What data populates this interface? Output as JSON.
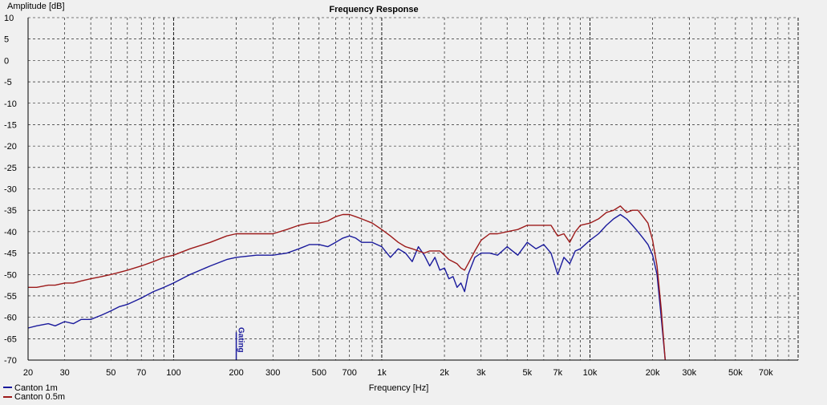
{
  "chart_data": {
    "type": "line",
    "title": "Frequency Response",
    "xlabel": "Frequency [Hz]",
    "ylabel": "Amplitude [dB]",
    "xscale": "log",
    "xlim": [
      20,
      100000
    ],
    "ylim": [
      -70,
      10
    ],
    "grid": true,
    "legend_position": "bottom-left",
    "x_ticks": [
      {
        "value": 20,
        "label": "20"
      },
      {
        "value": 30,
        "label": "30"
      },
      {
        "value": 50,
        "label": "50"
      },
      {
        "value": 70,
        "label": "70"
      },
      {
        "value": 100,
        "label": "100"
      },
      {
        "value": 200,
        "label": "200"
      },
      {
        "value": 300,
        "label": "300"
      },
      {
        "value": 500,
        "label": "500"
      },
      {
        "value": 700,
        "label": "700"
      },
      {
        "value": 1000,
        "label": "1k"
      },
      {
        "value": 2000,
        "label": "2k"
      },
      {
        "value": 3000,
        "label": "3k"
      },
      {
        "value": 5000,
        "label": "5k"
      },
      {
        "value": 7000,
        "label": "7k"
      },
      {
        "value": 10000,
        "label": "10k"
      },
      {
        "value": 20000,
        "label": "20k"
      },
      {
        "value": 30000,
        "label": "30k"
      },
      {
        "value": 50000,
        "label": "50k"
      },
      {
        "value": 70000,
        "label": "70k"
      }
    ],
    "y_ticks": [
      10,
      5,
      0,
      -5,
      -10,
      -15,
      -20,
      -25,
      -30,
      -35,
      -40,
      -45,
      -50,
      -55,
      -60,
      -65,
      -70
    ],
    "marker": {
      "label": "Gating",
      "x": 200,
      "color": "#1a1a9c"
    },
    "series": [
      {
        "name": "Canton 1m",
        "color": "#1a1a9c",
        "x": [
          20,
          22,
          25,
          27,
          30,
          33,
          36,
          40,
          45,
          50,
          55,
          60,
          70,
          80,
          90,
          100,
          120,
          150,
          180,
          200,
          250,
          300,
          350,
          400,
          450,
          500,
          550,
          600,
          650,
          700,
          750,
          800,
          900,
          1000,
          1100,
          1200,
          1300,
          1400,
          1500,
          1600,
          1700,
          1800,
          1900,
          2000,
          2100,
          2200,
          2300,
          2400,
          2500,
          2600,
          2800,
          3000,
          3300,
          3600,
          4000,
          4500,
          5000,
          5500,
          6000,
          6500,
          7000,
          7500,
          8000,
          8500,
          9000,
          10000,
          11000,
          12000,
          13000,
          14000,
          15000,
          16000,
          17000,
          18000,
          19000,
          20000,
          21000,
          22000,
          23000
        ],
        "y": [
          -62.5,
          -62,
          -61.5,
          -62,
          -61,
          -61.5,
          -60.5,
          -60.5,
          -59.5,
          -58.5,
          -57.5,
          -57,
          -55.5,
          -54,
          -53,
          -52,
          -50,
          -48,
          -46.5,
          -46,
          -45.5,
          -45.5,
          -45,
          -44,
          -43,
          -43,
          -43.5,
          -42.5,
          -41.5,
          -41,
          -41.5,
          -42.5,
          -42.5,
          -43.5,
          -46,
          -44,
          -45,
          -47,
          -43.5,
          -45.5,
          -48,
          -46,
          -49,
          -48.5,
          -51,
          -50.5,
          -53,
          -52,
          -54,
          -50,
          -46,
          -45,
          -45,
          -45.5,
          -43.5,
          -45.5,
          -42.5,
          -44,
          -43,
          -45,
          -50,
          -46,
          -47.5,
          -44.5,
          -44,
          -42,
          -40.5,
          -38.5,
          -37,
          -36,
          -37,
          -38.5,
          -40,
          -41.5,
          -43,
          -45.5,
          -50,
          -60,
          -70
        ]
      },
      {
        "name": "Canton 0.5m",
        "color": "#9c1a1a",
        "x": [
          20,
          22,
          25,
          27,
          30,
          33,
          36,
          40,
          45,
          50,
          55,
          60,
          70,
          80,
          90,
          100,
          120,
          150,
          180,
          200,
          250,
          300,
          350,
          400,
          450,
          500,
          550,
          600,
          650,
          700,
          750,
          800,
          900,
          1000,
          1100,
          1200,
          1300,
          1400,
          1500,
          1600,
          1700,
          1800,
          1900,
          2000,
          2100,
          2200,
          2300,
          2400,
          2500,
          2600,
          2800,
          3000,
          3300,
          3600,
          4000,
          4500,
          5000,
          5500,
          6000,
          6500,
          7000,
          7500,
          8000,
          8500,
          9000,
          10000,
          11000,
          12000,
          13000,
          14000,
          15000,
          16000,
          17000,
          18000,
          19000,
          20000,
          21000,
          22000,
          23000
        ],
        "y": [
          -53,
          -53,
          -52.5,
          -52.5,
          -52,
          -52,
          -51.5,
          -51,
          -50.5,
          -50,
          -49.5,
          -49,
          -48,
          -47,
          -46,
          -45.5,
          -44,
          -42.5,
          -41,
          -40.5,
          -40.5,
          -40.5,
          -39.5,
          -38.5,
          -38,
          -38,
          -37.5,
          -36.5,
          -36,
          -36,
          -36.5,
          -37,
          -38,
          -39.5,
          -41,
          -42.5,
          -43.5,
          -44,
          -44.5,
          -45,
          -44.5,
          -44.5,
          -44.5,
          -45.5,
          -46.5,
          -47,
          -47.5,
          -48.5,
          -49,
          -47.5,
          -44.5,
          -42,
          -40.5,
          -40.5,
          -40,
          -39.5,
          -38.5,
          -38.5,
          -38.5,
          -38.5,
          -41,
          -40.5,
          -42.5,
          -40,
          -38.5,
          -38,
          -37,
          -35.5,
          -35,
          -34,
          -35.5,
          -35,
          -35,
          -36.5,
          -38,
          -42,
          -48,
          -58,
          -70
        ]
      }
    ]
  }
}
